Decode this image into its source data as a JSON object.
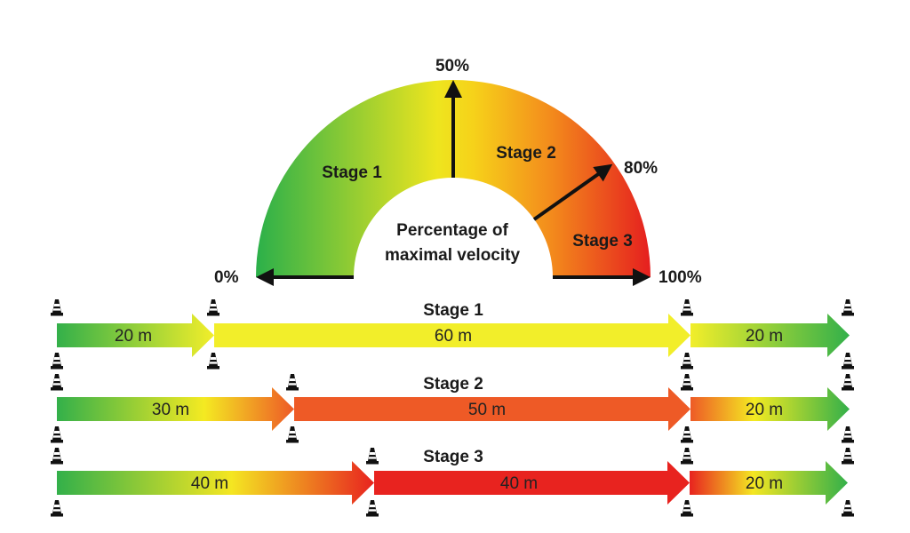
{
  "gauge": {
    "title_line1": "Percentage of",
    "title_line2": "maximal velocity",
    "ticks": {
      "zero": "0%",
      "fifty": "50%",
      "eighty": "80%",
      "hundred": "100%"
    },
    "zones": {
      "stage1": "Stage 1",
      "stage2": "Stage 2",
      "stage3": "Stage 3"
    },
    "colors": {
      "green": "#2bb04a",
      "yellow": "#f5e818",
      "orange": "#f39a1b",
      "red": "#e8231f"
    }
  },
  "stages": [
    {
      "title": "Stage 1",
      "segments": [
        {
          "label": "20 m",
          "color": "gradient-green-yellow"
        },
        {
          "label": "60 m",
          "color": "#f2ee2a"
        },
        {
          "label": "20 m",
          "color": "gradient-yellow-green"
        }
      ]
    },
    {
      "title": "Stage 2",
      "segments": [
        {
          "label": "30 m",
          "color": "gradient-green-yellow-orange"
        },
        {
          "label": "50 m",
          "color": "#ee5a26"
        },
        {
          "label": "20 m",
          "color": "gradient-orange-yellow-green"
        }
      ]
    },
    {
      "title": "Stage 3",
      "segments": [
        {
          "label": "40 m",
          "color": "gradient-green-yellow-red"
        },
        {
          "label": "40 m",
          "color": "#e8231f"
        },
        {
          "label": "20 m",
          "color": "gradient-red-yellow-green"
        }
      ]
    }
  ],
  "icons": {
    "marker": "cone-icon"
  }
}
